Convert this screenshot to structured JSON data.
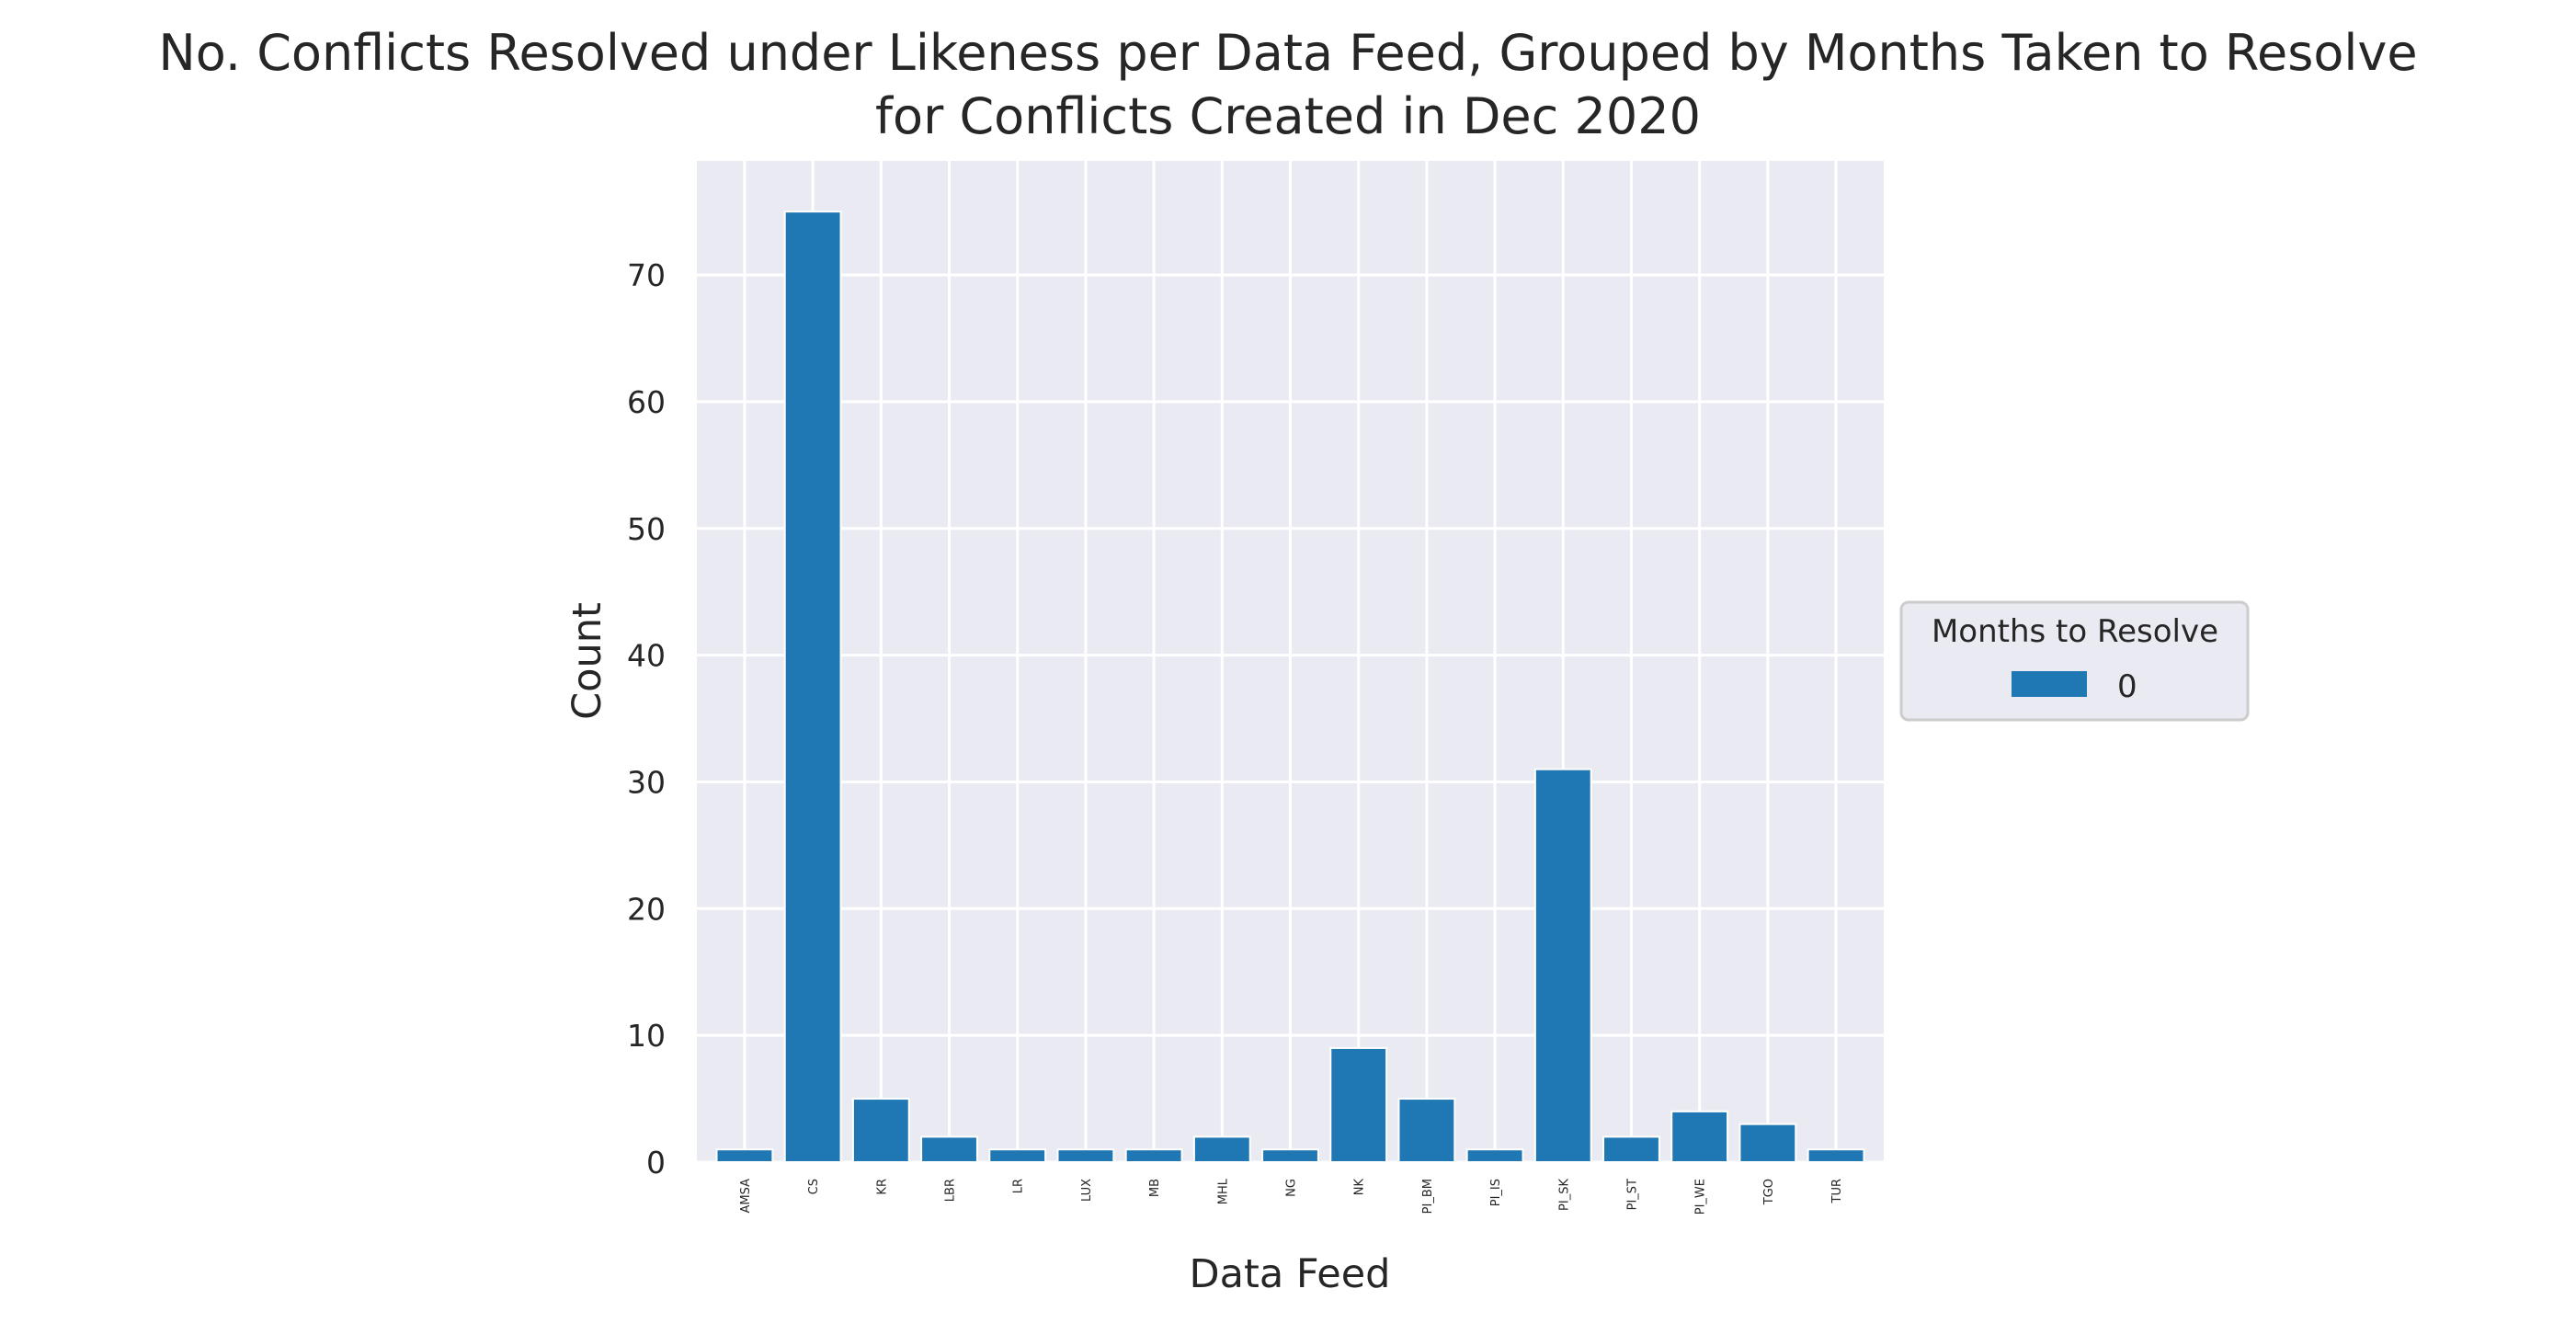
{
  "chart_data": {
    "type": "bar",
    "title_line1": "No. Conflicts Resolved under Likeness per Data Feed, Grouped by Months Taken to Resolve",
    "title_line2": "for Conflicts Created in Dec 2020",
    "xlabel": "Data Feed",
    "ylabel": "Count",
    "categories": [
      "AMSA",
      "CS",
      "KR",
      "LBR",
      "LR",
      "LUX",
      "MB",
      "MHL",
      "NG",
      "NK",
      "PI_BM",
      "PI_IS",
      "PI_SK",
      "PI_ST",
      "PI_WE",
      "TGO",
      "TUR"
    ],
    "series": [
      {
        "name": "0",
        "color": "#1f77b4",
        "values": [
          1,
          75,
          5,
          2,
          1,
          1,
          1,
          2,
          1,
          9,
          5,
          1,
          31,
          2,
          4,
          3,
          1
        ]
      }
    ],
    "ylim": [
      0,
      79
    ],
    "yticks": [
      0,
      10,
      20,
      30,
      40,
      50,
      60,
      70
    ],
    "grid": true,
    "legend": {
      "title": "Months to Resolve",
      "placement": "center-right outside"
    },
    "colors": {
      "plot_bg": "#eaeaf2",
      "grid": "#ffffff",
      "bar": "#1f77b4"
    }
  }
}
